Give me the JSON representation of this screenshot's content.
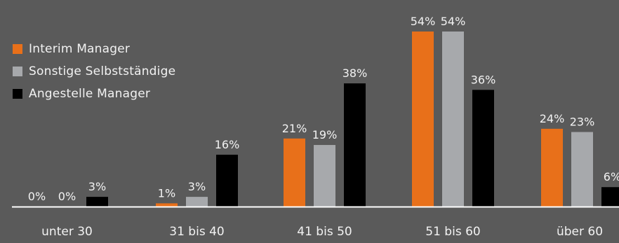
{
  "chart_data": {
    "type": "bar",
    "categories": [
      "unter 30",
      "31 bis 40",
      "41 bis 50",
      "51 bis 60",
      "über 60"
    ],
    "series": [
      {
        "name": "Interim Manager",
        "color": "#e8701a",
        "values": [
          0,
          1,
          21,
          54,
          24
        ],
        "labels": [
          "0%",
          "1%",
          "21%",
          "54%",
          "24%"
        ]
      },
      {
        "name": "Sonstige Selbstständige",
        "color": "#a7a9ac",
        "values": [
          0,
          3,
          19,
          54,
          23
        ],
        "labels": [
          "0%",
          "3%",
          "19%",
          "54%",
          "23%"
        ]
      },
      {
        "name": "Angestelle Manager",
        "color": "#000000",
        "values": [
          3,
          16,
          38,
          36,
          6
        ],
        "labels": [
          "3%",
          "16%",
          "38%",
          "36%",
          "6%"
        ]
      }
    ],
    "ylim": [
      0,
      54
    ],
    "grid": false,
    "legend_position": "top-left",
    "background": "#5a5a5a",
    "axis_color": "#ffffff",
    "label_color": "#f2f2f2"
  }
}
